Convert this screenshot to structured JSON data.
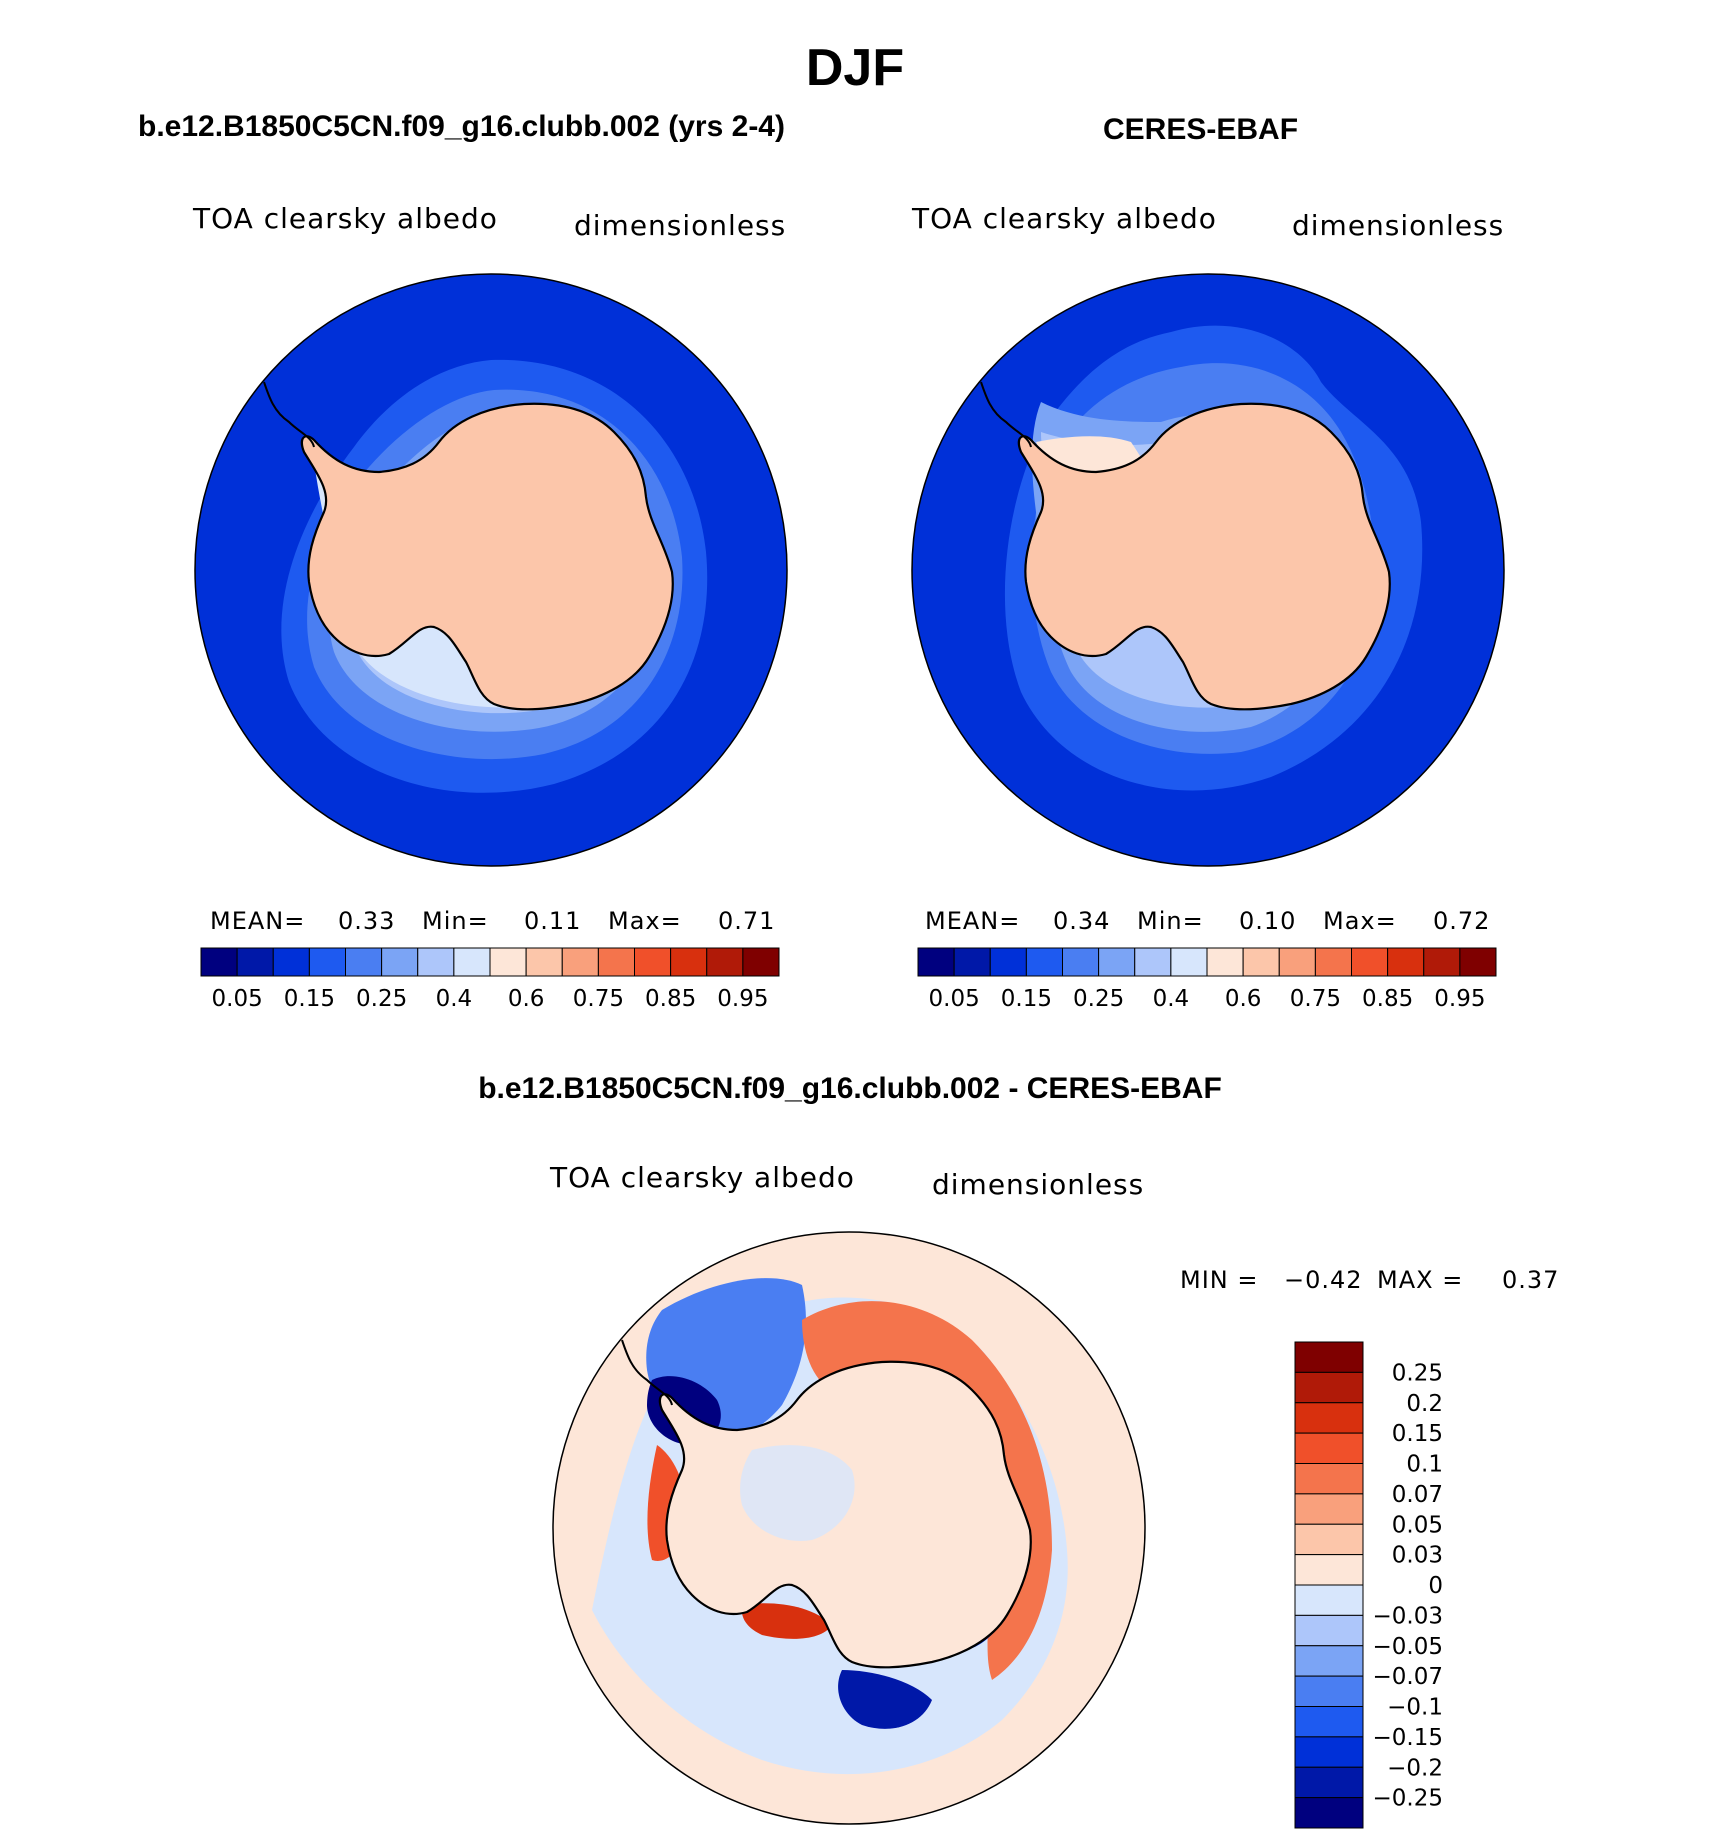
{
  "figure": {
    "title": "DJF",
    "panels": [
      {
        "case_title": "b.e12.B1850C5CN.f09_g16.clubb.002 (yrs 2-4)",
        "variable": "TOA clearsky albedo",
        "units": "dimensionless",
        "stats": {
          "mean_label": "MEAN=",
          "mean": "0.33",
          "min_label": "Min=",
          "min": "0.11",
          "max_label": "Max=",
          "max": "0.71"
        }
      },
      {
        "case_title": "CERES-EBAF",
        "variable": "TOA clearsky albedo",
        "units": "dimensionless",
        "stats": {
          "mean_label": "MEAN=",
          "mean": "0.34",
          "min_label": "Min=",
          "min": "0.10",
          "max_label": "Max=",
          "max": "0.72"
        }
      },
      {
        "case_title": "b.e12.B1850C5CN.f09_g16.clubb.002 - CERES-EBAF",
        "variable": "TOA clearsky albedo",
        "units": "dimensionless",
        "stats": {
          "min_label": "MIN =",
          "min": "−0.42",
          "max_label": "MAX =",
          "max": "0.37"
        }
      }
    ],
    "colorbar_abs": {
      "colors": [
        "#00007f",
        "#0018a8",
        "#0030d8",
        "#1e5af0",
        "#4a7ef2",
        "#7ba4f5",
        "#adc6fa",
        "#d7e6fc",
        "#fde6d8",
        "#fcc6aa",
        "#f9a07c",
        "#f4744c",
        "#f0502a",
        "#d8300e",
        "#b01a08",
        "#7f0000"
      ],
      "labels": [
        "0.05",
        "0.15",
        "0.25",
        "0.4",
        "0.6",
        "0.75",
        "0.85",
        "0.95"
      ]
    },
    "colorbar_diff": {
      "colors": [
        "#7f0000",
        "#b01a08",
        "#d8300e",
        "#f0502a",
        "#f4744c",
        "#f9a07c",
        "#fcc6aa",
        "#fde6d8",
        "#d7e6fc",
        "#adc6fa",
        "#7ba4f5",
        "#4a7ef2",
        "#1e5af0",
        "#0030d8",
        "#0018a8",
        "#00007f"
      ],
      "labels": [
        "0.25",
        "0.2",
        "0.15",
        "0.1",
        "0.07",
        "0.05",
        "0.03",
        "0",
        "−0.03",
        "−0.05",
        "−0.07",
        "−0.1",
        "−0.15",
        "−0.2",
        "−0.25"
      ]
    }
  }
}
